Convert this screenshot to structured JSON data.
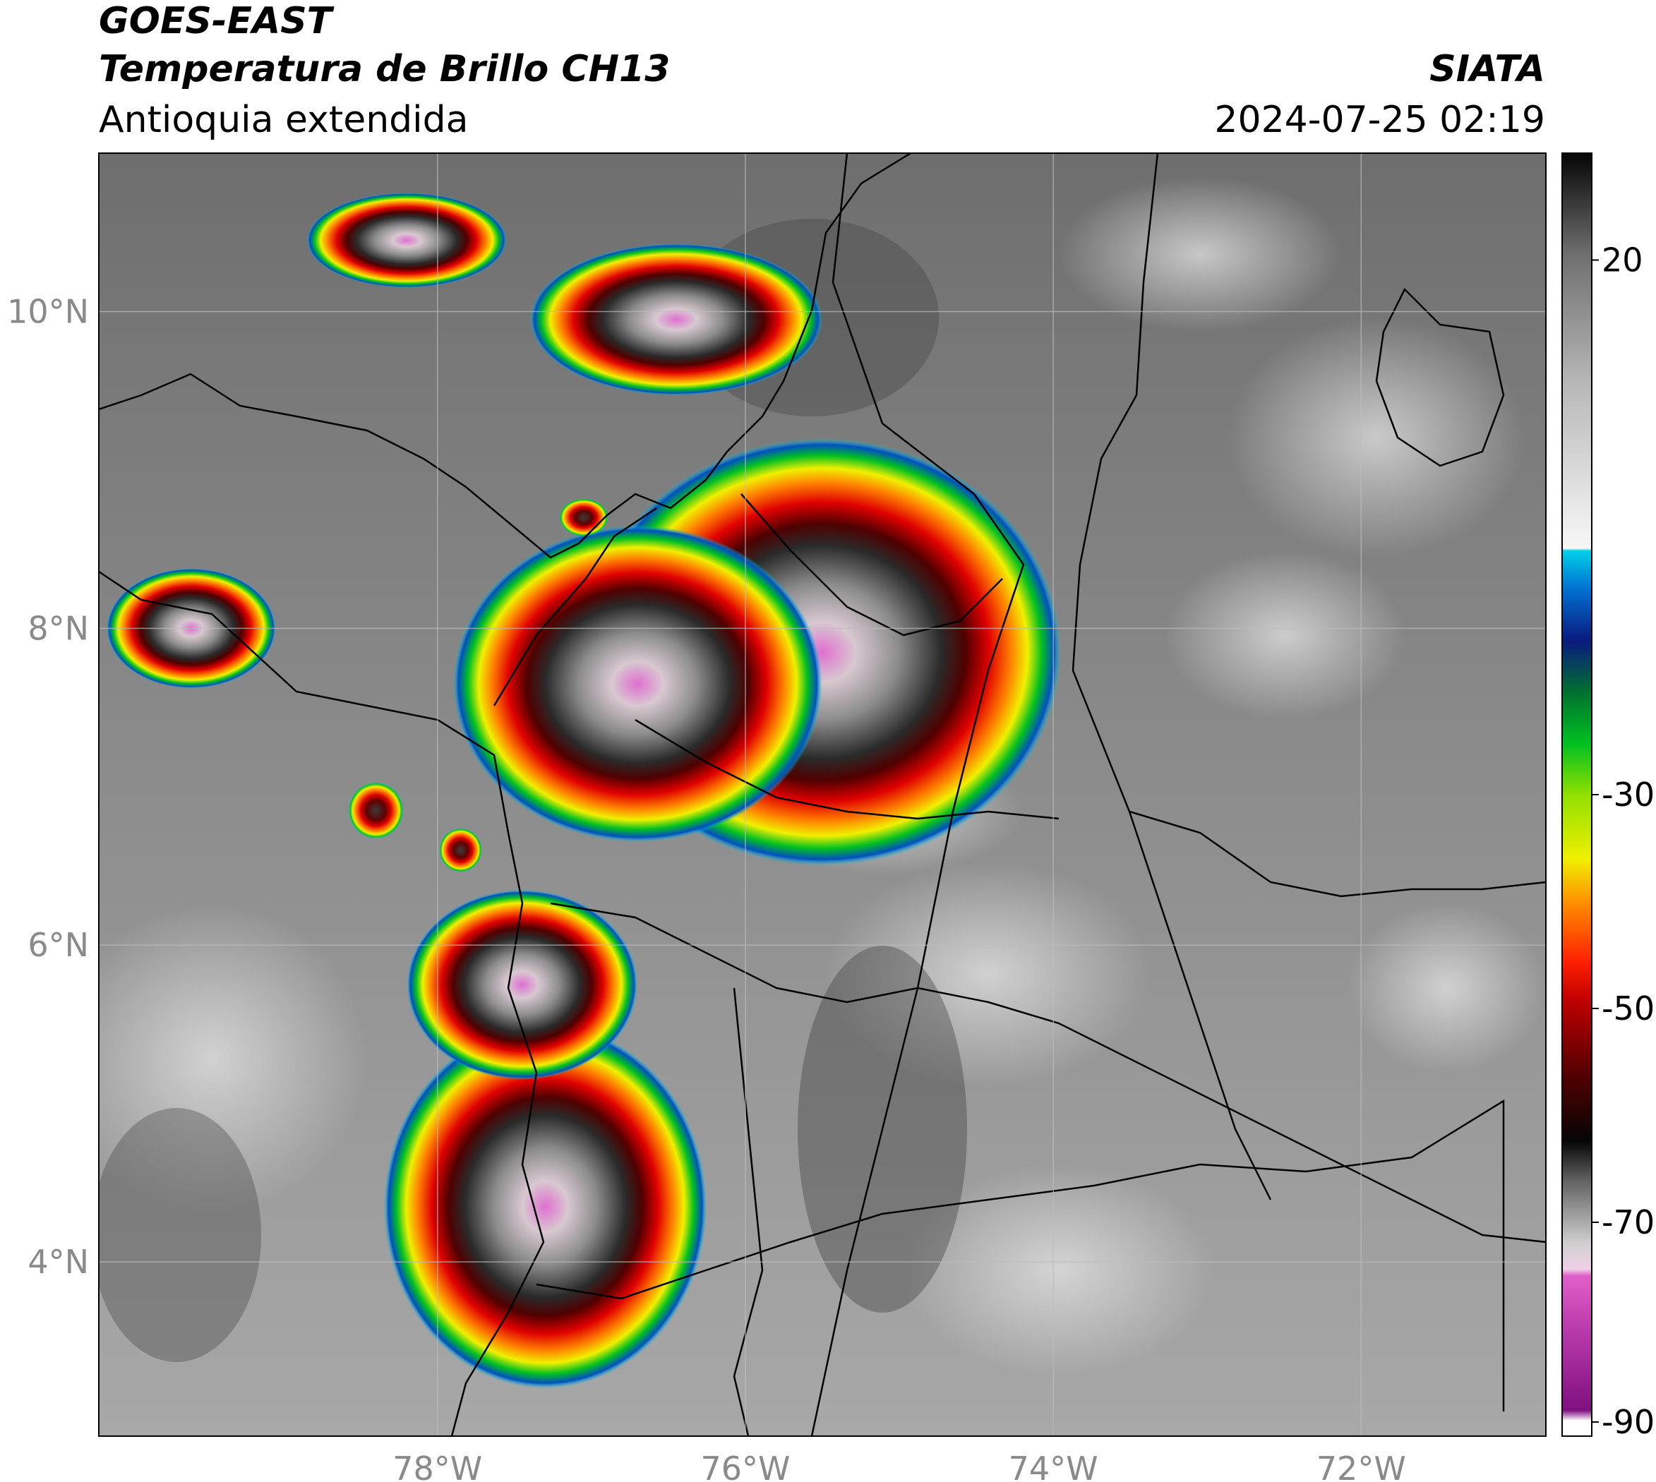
{
  "header": {
    "satellite": "GOES-EAST",
    "product": "Temperatura de Brillo CH13",
    "region": "Antioquia extendida",
    "agency": "SIATA",
    "timestamp": "2024-07-25 02:19"
  },
  "map": {
    "lon_range": [
      -80.2,
      -70.8
    ],
    "lat_range": [
      2.9,
      11.0
    ],
    "lon_ticks": [
      {
        "value": -78,
        "label": "78°W"
      },
      {
        "value": -76,
        "label": "76°W"
      },
      {
        "value": -74,
        "label": "74°W"
      },
      {
        "value": -72,
        "label": "72°W"
      }
    ],
    "lat_ticks": [
      {
        "value": 10,
        "label": "10°N"
      },
      {
        "value": 8,
        "label": "8°N"
      },
      {
        "value": 6,
        "label": "6°N"
      },
      {
        "value": 4,
        "label": "4°N"
      }
    ],
    "grid": true,
    "storm_cells": [
      {
        "id": "central-large",
        "lon": -75.5,
        "lat": 7.85,
        "rx": 1.55,
        "ry": 1.35
      },
      {
        "id": "central-west",
        "lon": -76.7,
        "lat": 7.65,
        "rx": 1.2,
        "ry": 1.0
      },
      {
        "id": "south-large",
        "lon": -77.3,
        "lat": 4.35,
        "rx": 1.05,
        "ry": 1.15
      },
      {
        "id": "mid-south",
        "lon": -77.45,
        "lat": 5.75,
        "rx": 0.75,
        "ry": 0.6
      },
      {
        "id": "north-caribbean",
        "lon": -76.45,
        "lat": 9.95,
        "rx": 0.95,
        "ry": 0.48
      },
      {
        "id": "north-west",
        "lon": -78.2,
        "lat": 10.45,
        "rx": 0.65,
        "ry": 0.3
      },
      {
        "id": "west-pacific",
        "lon": -79.6,
        "lat": 8.0,
        "rx": 0.55,
        "ry": 0.38
      },
      {
        "id": "small-west-1",
        "lon": -78.4,
        "lat": 6.85,
        "rx": 0.18,
        "ry": 0.18
      },
      {
        "id": "small-west-2",
        "lon": -77.85,
        "lat": 6.6,
        "rx": 0.14,
        "ry": 0.14
      },
      {
        "id": "small-north",
        "lon": -77.05,
        "lat": 8.7,
        "rx": 0.16,
        "ry": 0.12
      }
    ]
  },
  "colorbar": {
    "vmin": -90,
    "vmax": 30,
    "ticks": [
      {
        "value": 20,
        "label": "20"
      },
      {
        "value": -30,
        "label": "-30"
      },
      {
        "value": -50,
        "label": "-50"
      },
      {
        "value": -70,
        "label": "-70"
      },
      {
        "value": -90,
        "label": "-90"
      }
    ],
    "colors": {
      "warm_dark": "#1a1a1a",
      "gray_mid": "#8c8c8c",
      "white": "#ffffff",
      "cyan": "#00d0e8",
      "navy": "#0a1a80",
      "green": "#00c020",
      "yellow": "#f0f000",
      "orange": "#ff8000",
      "red": "#e00000",
      "dark_red": "#500000",
      "black": "#050505",
      "light_gray": "#d0d0d0",
      "pink": "#e060c8",
      "purple": "#801080"
    }
  }
}
